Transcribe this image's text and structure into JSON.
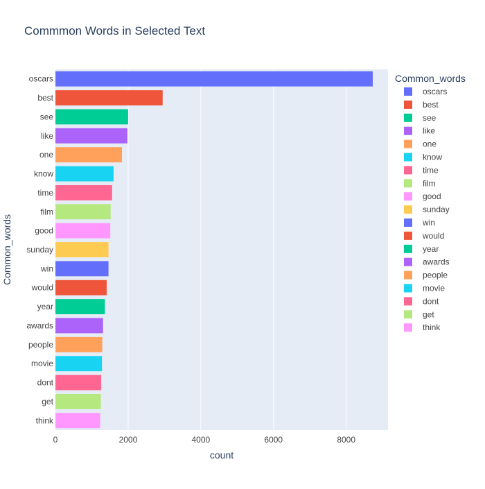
{
  "chart_data": {
    "type": "bar",
    "orientation": "horizontal",
    "title": "Commmon Words in Selected Text",
    "xlabel": "count",
    "ylabel": "Common_words",
    "legend_title": "Common_words",
    "legend_position": "right",
    "grid": true,
    "xlim": [
      0,
      9150
    ],
    "xticks": [
      0,
      2000,
      4000,
      6000,
      8000
    ],
    "xtick_labels": [
      "0",
      "2000",
      "4000",
      "6000",
      "8000"
    ],
    "categories": [
      "oscars",
      "best",
      "see",
      "like",
      "one",
      "know",
      "time",
      "film",
      "good",
      "sunday",
      "win",
      "would",
      "year",
      "awards",
      "people",
      "movie",
      "dont",
      "get",
      "think"
    ],
    "values": [
      8730,
      2950,
      2000,
      1980,
      1830,
      1600,
      1560,
      1520,
      1510,
      1460,
      1460,
      1410,
      1360,
      1310,
      1290,
      1280,
      1260,
      1250,
      1230
    ],
    "colors": [
      "#636efa",
      "#EF553B",
      "#00cc96",
      "#ab63fa",
      "#FFA15A",
      "#19d3f3",
      "#FF6692",
      "#B6E880",
      "#FF97FF",
      "#FECB52",
      "#636efa",
      "#EF553B",
      "#00cc96",
      "#ab63fa",
      "#FFA15A",
      "#19d3f3",
      "#FF6692",
      "#B6E880",
      "#FF97FF"
    ]
  },
  "theme": {
    "plot_bg": "#e5ecf6",
    "grid_color": "#ffffff",
    "text_color": "#2a3f5f",
    "tick_color": "#444444"
  }
}
